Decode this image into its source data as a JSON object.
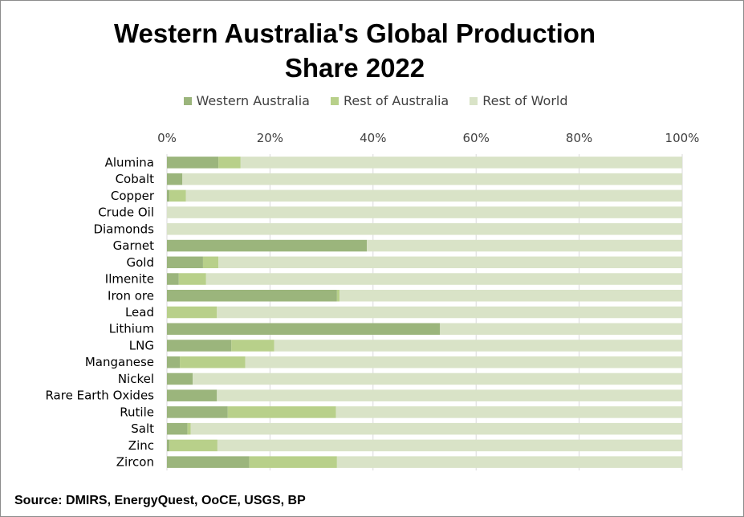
{
  "chart_data": {
    "type": "bar",
    "orientation": "horizontal",
    "stacked": "percent",
    "title": "Western Australia's Global Production Share 2022",
    "title_lines": [
      "Western Australia's Global Production",
      "Share 2022"
    ],
    "xlim": [
      0,
      100
    ],
    "x_tick_labels": [
      "0%",
      "20%",
      "40%",
      "60%",
      "80%",
      "100%"
    ],
    "legend_position": "top",
    "grid": true,
    "categories": [
      "Alumina",
      "Cobalt",
      "Copper",
      "Crude Oil",
      "Diamonds",
      "Garnet",
      "Gold",
      "Ilmenite",
      "Iron ore",
      "Lead",
      "Lithium",
      "LNG",
      "Manganese",
      "Nickel",
      "Rare Earth Oxides",
      "Rutile",
      "Salt",
      "Zinc",
      "Zircon"
    ],
    "series": [
      {
        "name": "Western Australia",
        "color": "#9bb57c",
        "values": [
          10,
          3,
          0.5,
          0,
          0,
          38.8,
          7,
          2.3,
          33,
          0,
          53,
          12.5,
          2.5,
          5,
          9.7,
          11.8,
          4,
          0.5,
          16
        ]
      },
      {
        "name": "Rest of Australia",
        "color": "#b8d08a",
        "values": [
          4.3,
          0,
          3.2,
          0,
          0,
          0,
          3,
          5.3,
          0.5,
          9.7,
          0,
          8.3,
          12.7,
          0,
          0,
          21,
          0.6,
          9.3,
          17
        ]
      },
      {
        "name": "Rest of World",
        "color": "#d9e3c7",
        "values": [
          85.7,
          97,
          96.3,
          100,
          100,
          61.2,
          90,
          92.4,
          66.5,
          90.3,
          47,
          79.2,
          84.8,
          95,
          90.3,
          67.2,
          95.4,
          90.2,
          67
        ]
      }
    ]
  },
  "source": "Source: DMIRS, EnergyQuest, OoCE, USGS, BP"
}
